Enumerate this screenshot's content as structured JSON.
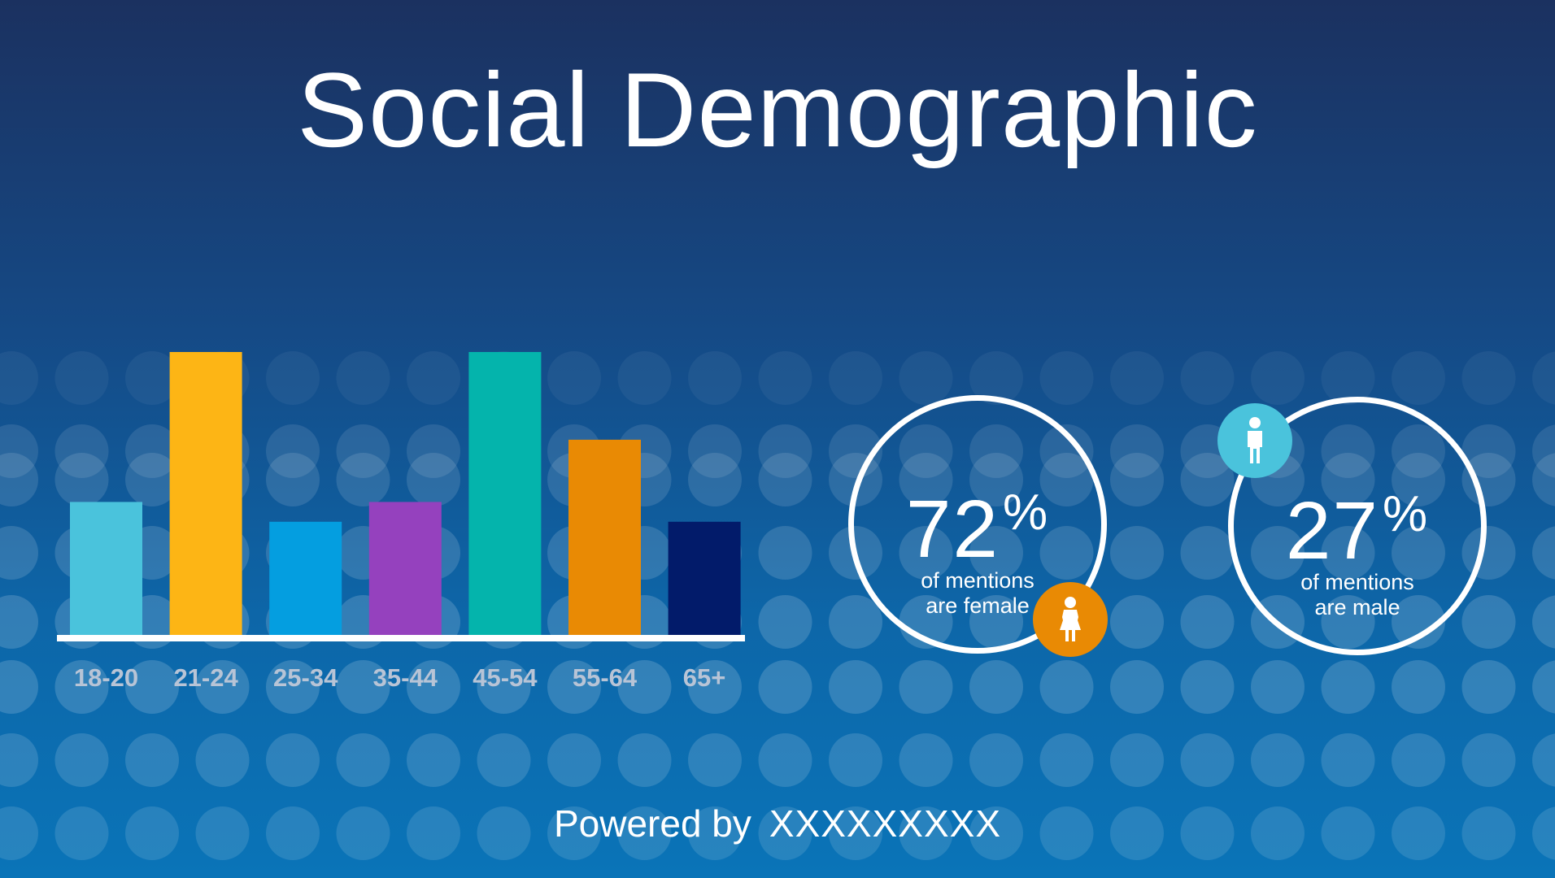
{
  "title": "Social Demographic",
  "chart_data": {
    "type": "bar",
    "categories": [
      "18-20",
      "21-24",
      "25-34",
      "35-44",
      "45-54",
      "55-64",
      "65+"
    ],
    "values": [
      47,
      100,
      40,
      47,
      100,
      69,
      40
    ],
    "ylim": [
      0,
      100
    ],
    "grid": false,
    "colors": [
      "#4ac3dc",
      "#fdb515",
      "#049ee0",
      "#9541be",
      "#04b4ac",
      "#e98a04",
      "#021b6a"
    ],
    "baseline_color": "#ffffff",
    "label_color": "#b8c4d6"
  },
  "female": {
    "value": "72",
    "sign": "%",
    "line1": "of mentions",
    "line2": "are female",
    "icon": "female-person-icon",
    "badge_color": "#e98a04"
  },
  "male": {
    "value": "27",
    "sign": "%",
    "line1": "of mentions",
    "line2": "are male",
    "icon": "male-person-icon",
    "badge_color": "#4ac3dc"
  },
  "footer": {
    "powered_by": "Powered by",
    "brand": "XXXXXXXXX"
  }
}
